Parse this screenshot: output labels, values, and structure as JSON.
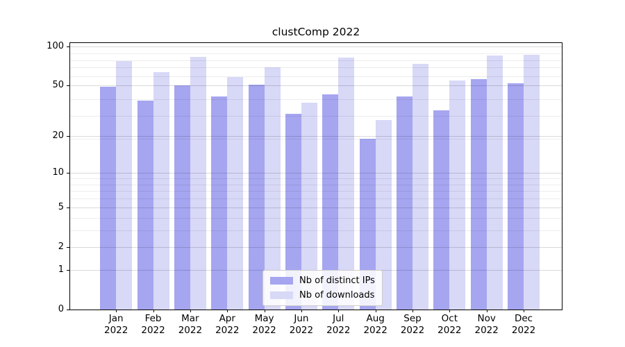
{
  "figure": {
    "title": "clustComp 2022"
  },
  "chart_data": {
    "type": "bar",
    "title": "clustComp 2022",
    "categories": [
      "Jan 2022",
      "Feb 2022",
      "Mar 2022",
      "Apr 2022",
      "May 2022",
      "Jun 2022",
      "Jul 2022",
      "Aug 2022",
      "Sep 2022",
      "Oct 2022",
      "Nov 2022",
      "Dec 2022"
    ],
    "series": [
      {
        "name": "Nb of distinct IPs",
        "color": "#a5a5f0",
        "values": [
          49,
          38,
          50,
          41,
          51,
          30,
          43,
          19,
          41,
          32,
          56,
          52
        ]
      },
      {
        "name": "Nb of downloads",
        "color": "#d8d8f7",
        "values": [
          78,
          64,
          84,
          58,
          69,
          37,
          82,
          27,
          74,
          55,
          86,
          87
        ]
      }
    ],
    "xlabel": "",
    "ylabel": "",
    "yscale": "log1p",
    "ylim": [
      0,
      106
    ],
    "yticks": [
      0,
      1,
      2,
      5,
      10,
      20,
      50,
      100
    ],
    "yticks_minor": [
      3,
      4,
      6,
      7,
      8,
      9,
      19,
      29,
      39,
      59,
      69,
      79,
      89
    ],
    "grid": "horizontal major and minor, drawn over bars",
    "legend_position": "lower center"
  },
  "colors": {
    "background": "#ffffff",
    "spine": "#000000",
    "grid_major": "rgba(0,0,0,0.15)",
    "grid_minor": "rgba(0,0,0,0.07)",
    "legend_border": "#cccccc",
    "legend_background": "rgba(255,255,255,0.85)"
  }
}
